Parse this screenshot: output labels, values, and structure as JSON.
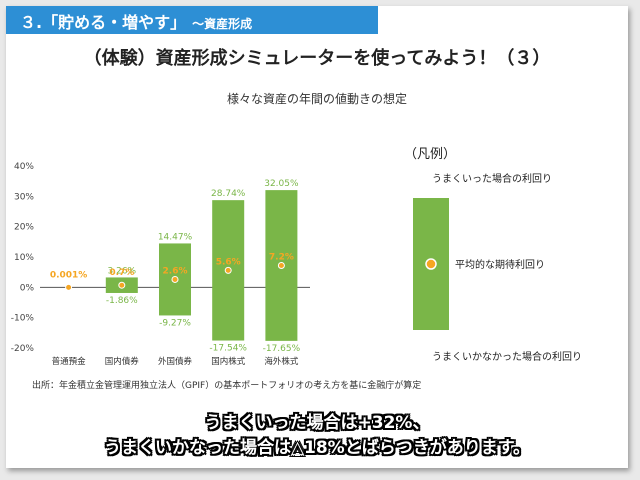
{
  "header": {
    "title": "３.「貯める・増やす」",
    "subtitle": "～資産形成"
  },
  "slide_title": "（体験）資産形成シミュレーターを使ってみよう！（３）",
  "source": "出所：年金積立金管理運用独立法人（GPIF）の基本ポートフォリオの考え方を基に金融庁が算定",
  "caption": {
    "line1": "うまくいった場合は+32%、",
    "line2": "うまくいかなった場合は△18%とばらつきがあります。"
  },
  "colors": {
    "bar": "#7ab648",
    "dot": "#f5a623",
    "mid_label": "#f5a623",
    "header": "#2d8fd5"
  },
  "chart_data": {
    "type": "bar",
    "title": "様々な資産の年間の値動きの想定",
    "categories": [
      "普通預金",
      "国内債券",
      "外国債券",
      "国内株式",
      "海外株式"
    ],
    "series": [
      {
        "name": "うまくいった場合の利回り",
        "values": [
          0.001,
          3.26,
          14.47,
          28.74,
          32.05
        ]
      },
      {
        "name": "平均的な期待利回り",
        "values": [
          0.001,
          0.7,
          2.6,
          5.6,
          7.2
        ]
      },
      {
        "name": "うまくいかなかった場合の利回り",
        "values": [
          0.001,
          -1.86,
          -9.27,
          -17.54,
          -17.65
        ]
      }
    ],
    "high_labels": [
      "",
      "3.26%",
      "14.47%",
      "28.74%",
      "32.05%"
    ],
    "mid_labels": [
      "0.001%",
      "0.7%",
      "2.6%",
      "5.6%",
      "7.2%"
    ],
    "low_labels": [
      "",
      "-1.86%",
      "-9.27%",
      "-17.54%",
      "-17.65%"
    ],
    "y_ticks": [
      "-20%",
      "-10%",
      "0%",
      "10%",
      "20%",
      "30%",
      "40%"
    ],
    "y_tick_values": [
      -20,
      -10,
      0,
      10,
      20,
      30,
      40
    ],
    "ylim": [
      -20,
      40
    ],
    "grid": false,
    "legend_title": "（凡例）",
    "legend_high": "うまくいった場合の利回り",
    "legend_mid": "平均的な期待利回り",
    "legend_low": "うまくいかなかった場合の利回り",
    "legend_placement": "right"
  }
}
